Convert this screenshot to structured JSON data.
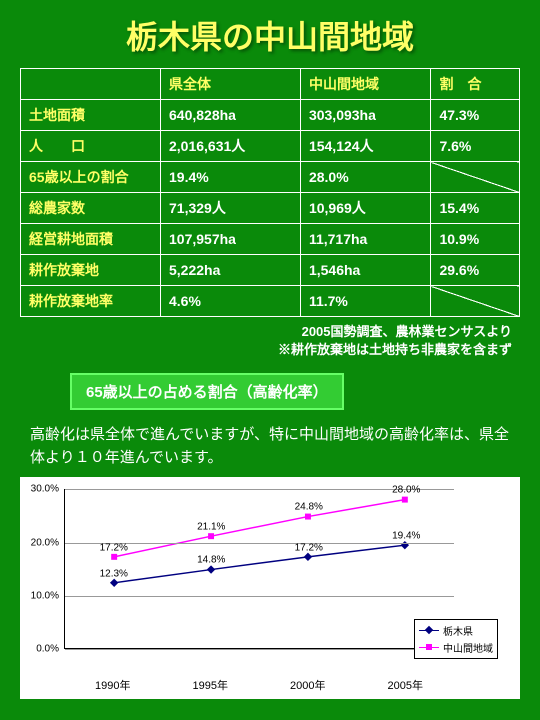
{
  "title": "栃木県の中山間地域",
  "table": {
    "headers": [
      "",
      "県全体",
      "中山間地域",
      "割　合"
    ],
    "rows": [
      {
        "label": "土地面積",
        "c1": "640,828ha",
        "c2": "303,093ha",
        "c3": "47.3%",
        "diag": false
      },
      {
        "label": "人　　口",
        "c1": "2,016,631人",
        "c2": "154,124人",
        "c3": "7.6%",
        "diag": false
      },
      {
        "label": "65歳以上の割合",
        "c1": "19.4%",
        "c2": "28.0%",
        "c3": "",
        "diag": true
      },
      {
        "label": "総農家数",
        "c1": "71,329人",
        "c2": "10,969人",
        "c3": "15.4%",
        "diag": false
      },
      {
        "label": "経営耕地面積",
        "c1": "107,957ha",
        "c2": "11,717ha",
        "c3": "10.9%",
        "diag": false
      },
      {
        "label": "耕作放棄地",
        "c1": "5,222ha",
        "c2": "1,546ha",
        "c3": "29.6%",
        "diag": false
      },
      {
        "label": "耕作放棄地率",
        "c1": "4.6%",
        "c2": "11.7%",
        "c3": "",
        "diag": true
      }
    ]
  },
  "source_note_1": "2005国勢調査、農林業センサスより",
  "source_note_2": "※耕作放棄地は土地持ち非農家を含まず",
  "subtitle": "65歳以上の占める割合（高齢化率）",
  "body_text": "高齢化は県全体で進んでいますが、特に中山間地域の高齢化率は、県全体より１０年進んでいます。",
  "chart": {
    "type": "line",
    "ylim": [
      0,
      30
    ],
    "ytick_step": 10,
    "ytick_format": ".0%",
    "x_categories": [
      "1990年",
      "1995年",
      "2000年",
      "2005年"
    ],
    "series": [
      {
        "name": "栃木県",
        "color": "#000080",
        "marker": "diamond",
        "values": [
          12.3,
          14.8,
          17.2,
          19.4
        ]
      },
      {
        "name": "中山間地域",
        "color": "#ff00ff",
        "marker": "square",
        "values": [
          17.2,
          21.1,
          24.8,
          28.0
        ]
      }
    ],
    "background_color": "#ffffff",
    "grid_color": "#999999",
    "label_fontsize": 10
  }
}
